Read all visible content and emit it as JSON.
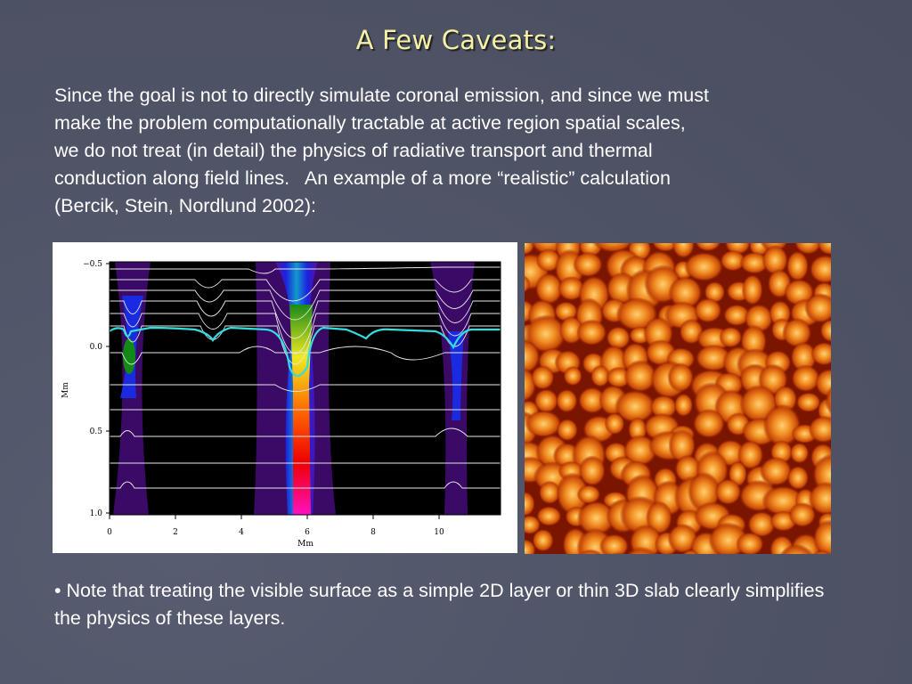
{
  "slide": {
    "title": "A Few Caveats:",
    "paragraph": "Since the goal is not to directly simulate coronal emission, and since we must\nmake the problem computationally tractable at active region spatial scales,\nwe do not treat (in detail) the physics of radiative transport and thermal\nconduction along field lines.   An example of a more “realistic” calculation\n(Bercik, Stein, Nordlund 2002):",
    "bullet": "• Note that treating the visible surface as a simple 2D layer or thin 3D slab clearly simplifies the physics of these layers."
  },
  "figure": {
    "ylabel": "Mm",
    "xlabel": "Mm",
    "y_ticks": [
      "−0.5",
      "0.0",
      "0.5",
      "1.0"
    ],
    "x_ticks": [
      "0",
      "2",
      "4",
      "6",
      "8",
      "10"
    ],
    "colors": {
      "plot_background": "#000000",
      "surface_line": "#33dddd",
      "granulation_dark": "#8a1a00",
      "granulation_bright": "#ffc04a"
    }
  }
}
